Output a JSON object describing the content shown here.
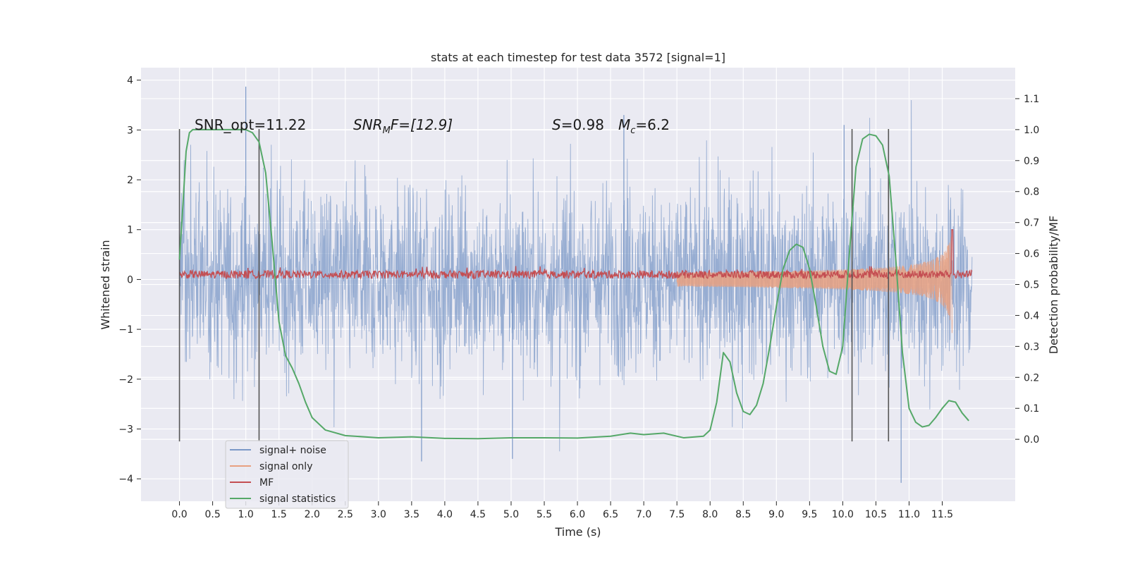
{
  "chart_data": {
    "type": "line",
    "title": "stats at each timestep for test data 3572 [signal=1]",
    "xlabel": "Time (s)",
    "ylabel": "Whitened strain",
    "ylabel_right": "Detection probability/MF",
    "xlim": [
      -0.58,
      12.6
    ],
    "ylim": [
      -4.45,
      4.25
    ],
    "ylim_right": [
      -0.2,
      1.2
    ],
    "x_ticks": [
      "0.0",
      "0.5",
      "1.0",
      "1.5",
      "2.0",
      "2.5",
      "3.0",
      "3.5",
      "4.0",
      "4.5",
      "5.0",
      "5.5",
      "6.0",
      "6.5",
      "7.0",
      "7.5",
      "8.0",
      "8.5",
      "9.0",
      "9.5",
      "10.0",
      "10.5",
      "11.0",
      "11.5"
    ],
    "y_ticks": [
      "−4",
      "−3",
      "−2",
      "−1",
      "0",
      "1",
      "2",
      "3",
      "4"
    ],
    "y_ticks_right": [
      "0.0",
      "0.1",
      "0.2",
      "0.3",
      "0.4",
      "0.5",
      "0.6",
      "0.7",
      "0.8",
      "0.9",
      "1.0",
      "1.1"
    ],
    "grid": true,
    "legend_position": "lower-left",
    "annotations": {
      "snr_opt": "SNR_opt=11.22",
      "snr_mf_prefix": "SNR",
      "snr_mf_sub": "M",
      "snr_mf_suffix": "F=[12.9]",
      "s_label": "S",
      "s_value": "=0.98",
      "mc_label": "M",
      "mc_sub": "c",
      "mc_value": "=6.2"
    },
    "vertical_lines_x": [
      0.0,
      1.2,
      10.14,
      10.69
    ],
    "series": [
      {
        "name": "signal+ noise",
        "color": "#7b98c7",
        "axis": "left",
        "description_points": {
          "x_range": [
            0.0,
            11.95
          ],
          "amplitude": 1.5,
          "peak_max": 3.87,
          "peak_min": -4.08
        }
      },
      {
        "name": "signal only",
        "color": "#e8a080",
        "axis": "left",
        "chirp": {
          "x_start": 7.5,
          "x_end": 11.65,
          "max_amplitude": 1.25
        }
      },
      {
        "name": "MF",
        "color": "#c44e52",
        "axis": "left",
        "baseline": 0.1,
        "noise": 0.08,
        "spike": {
          "x": 11.65,
          "y": 1.0
        }
      },
      {
        "name": "signal statistics",
        "color": "#55a868",
        "axis": "right",
        "x": [
          0.0,
          0.05,
          0.1,
          0.15,
          0.2,
          0.3,
          0.5,
          0.8,
          1.0,
          1.1,
          1.2,
          1.3,
          1.4,
          1.5,
          1.6,
          1.7,
          1.8,
          1.9,
          2.0,
          2.2,
          2.5,
          3.0,
          3.5,
          4.0,
          4.5,
          5.0,
          5.5,
          6.0,
          6.5,
          6.8,
          7.0,
          7.3,
          7.6,
          7.9,
          8.0,
          8.1,
          8.2,
          8.3,
          8.4,
          8.5,
          8.6,
          8.7,
          8.8,
          8.9,
          9.0,
          9.1,
          9.2,
          9.3,
          9.4,
          9.5,
          9.6,
          9.7,
          9.8,
          9.9,
          10.0,
          10.1,
          10.2,
          10.3,
          10.4,
          10.5,
          10.6,
          10.7,
          10.8,
          10.9,
          11.0,
          11.1,
          11.2,
          11.3,
          11.4,
          11.5,
          11.6,
          11.7,
          11.8,
          11.9
        ],
        "y": [
          0.58,
          0.75,
          0.93,
          0.99,
          1.0,
          1.0,
          1.0,
          1.0,
          1.0,
          0.99,
          0.96,
          0.86,
          0.63,
          0.38,
          0.27,
          0.23,
          0.18,
          0.12,
          0.07,
          0.03,
          0.012,
          0.005,
          0.008,
          0.003,
          0.002,
          0.005,
          0.005,
          0.004,
          0.01,
          0.02,
          0.015,
          0.02,
          0.005,
          0.01,
          0.03,
          0.12,
          0.28,
          0.25,
          0.15,
          0.09,
          0.08,
          0.11,
          0.18,
          0.3,
          0.43,
          0.55,
          0.61,
          0.63,
          0.62,
          0.55,
          0.43,
          0.3,
          0.22,
          0.21,
          0.3,
          0.6,
          0.88,
          0.97,
          0.985,
          0.98,
          0.95,
          0.85,
          0.58,
          0.28,
          0.1,
          0.055,
          0.04,
          0.045,
          0.07,
          0.1,
          0.125,
          0.12,
          0.085,
          0.06
        ]
      }
    ]
  }
}
